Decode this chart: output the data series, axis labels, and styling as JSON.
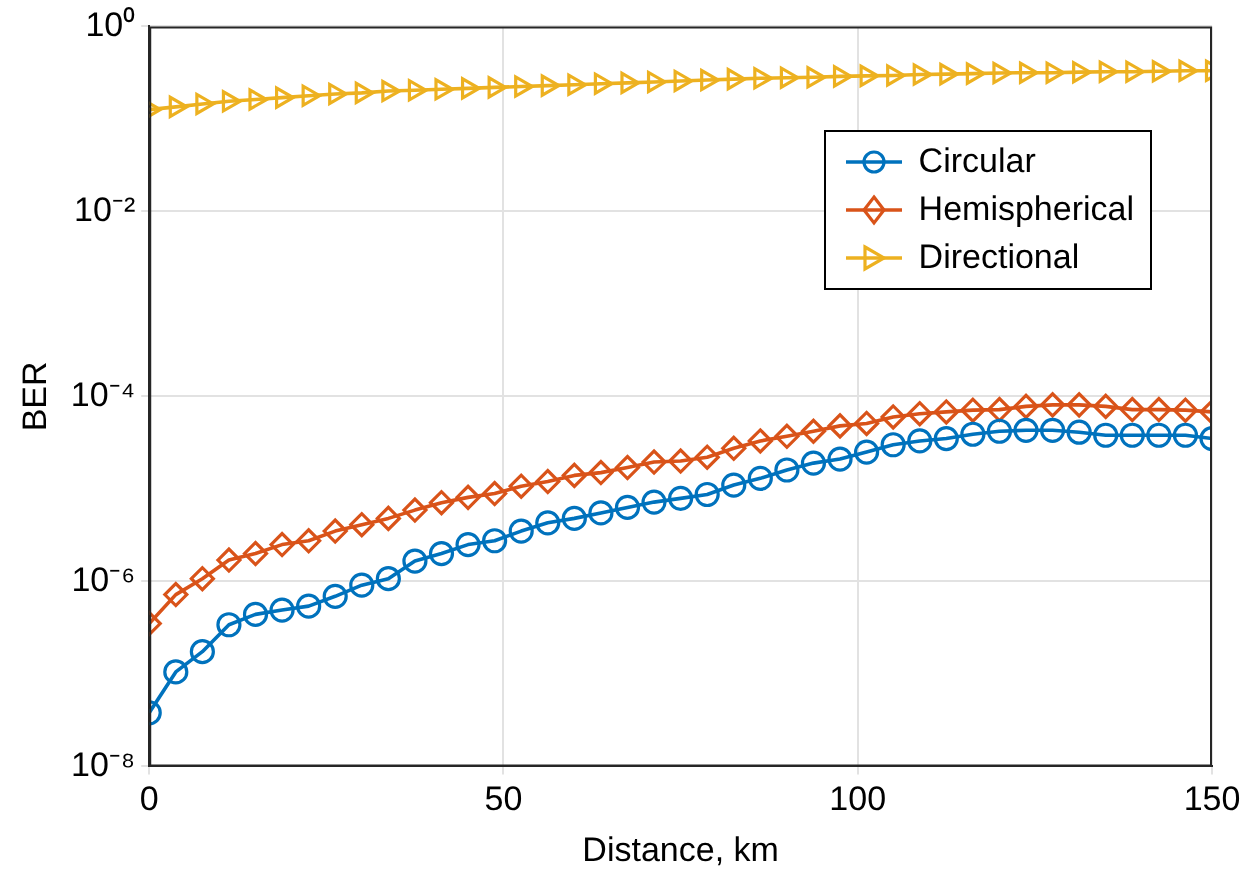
{
  "chart_data": {
    "type": "line",
    "xlabel": "Distance, km",
    "ylabel": "BER",
    "log": "y",
    "x": [
      0,
      3.75,
      7.5,
      11.25,
      15,
      18.75,
      22.5,
      26.25,
      30,
      33.75,
      37.5,
      41.25,
      45,
      48.75,
      52.5,
      56.25,
      60,
      63.75,
      67.5,
      71.25,
      75,
      78.75,
      82.5,
      86.25,
      90,
      93.75,
      97.5,
      101.25,
      105,
      108.75,
      112.5,
      116.25,
      120,
      123.75,
      127.5,
      131.25,
      135,
      138.75,
      142.5,
      146.25,
      150
    ],
    "series": [
      {
        "name": "Circular",
        "color": "#0072bd",
        "marker": "circle",
        "values": [
          3.8e-08,
          1.05e-07,
          1.74e-07,
          3.4e-07,
          4.4e-07,
          4.9e-07,
          5.4e-07,
          6.9e-07,
          9.1e-07,
          1.07e-06,
          1.66e-06,
          2e-06,
          2.5e-06,
          2.75e-06,
          3.5e-06,
          4.3e-06,
          4.8e-06,
          5.5e-06,
          6.3e-06,
          7.2e-06,
          7.9e-06,
          8.7e-06,
          1.1e-05,
          1.3e-05,
          1.6e-05,
          1.9e-05,
          2.1e-05,
          2.5e-05,
          3e-05,
          3.3e-05,
          3.5e-05,
          3.9e-05,
          4.2e-05,
          4.3e-05,
          4.3e-05,
          4.1e-05,
          3.8e-05,
          3.8e-05,
          3.8e-05,
          3.8e-05,
          3.5e-05
        ]
      },
      {
        "name": "Hemispherical",
        "color": "#d95319",
        "marker": "diamond",
        "values": [
          3.5e-07,
          7.2e-07,
          1.07e-06,
          1.7e-06,
          2e-06,
          2.5e-06,
          2.75e-06,
          3.5e-06,
          4.1e-06,
          4.8e-06,
          5.9e-06,
          7.1e-06,
          8.1e-06,
          8.9e-06,
          1.07e-05,
          1.2e-05,
          1.4e-05,
          1.5e-05,
          1.7e-05,
          1.95e-05,
          2e-05,
          2.2e-05,
          2.75e-05,
          3.3e-05,
          3.7e-05,
          4.2e-05,
          4.8e-05,
          5.1e-05,
          6e-05,
          6.5e-05,
          6.8e-05,
          7.1e-05,
          7.2e-05,
          7.8e-05,
          8.1e-05,
          8.1e-05,
          7.8e-05,
          7.2e-05,
          7.2e-05,
          7.1e-05,
          6.8e-05
        ]
      },
      {
        "name": "Directional",
        "color": "#edb120",
        "marker": "triangle",
        "values": [
          0.126,
          0.135,
          0.145,
          0.155,
          0.162,
          0.17,
          0.178,
          0.186,
          0.191,
          0.2,
          0.204,
          0.209,
          0.214,
          0.219,
          0.224,
          0.229,
          0.234,
          0.24,
          0.245,
          0.251,
          0.257,
          0.263,
          0.269,
          0.275,
          0.279,
          0.282,
          0.288,
          0.292,
          0.295,
          0.302,
          0.305,
          0.309,
          0.313,
          0.316,
          0.316,
          0.32,
          0.324,
          0.324,
          0.327,
          0.331,
          0.331
        ]
      }
    ],
    "xlim": [
      0,
      150
    ],
    "xticks": [
      0,
      50,
      100,
      150
    ],
    "ylim": [
      1e-08,
      1
    ],
    "yticks": [
      {
        "value": 1,
        "label": "10⁰"
      },
      {
        "value": 0.01,
        "label": "10⁻²"
      },
      {
        "value": 0.0001,
        "label": "10⁻⁴"
      },
      {
        "value": 1e-06,
        "label": "10⁻⁶"
      },
      {
        "value": 1e-08,
        "label": "10⁻⁸"
      }
    ],
    "grid": true,
    "legend": "top right",
    "line_style": "solid"
  }
}
